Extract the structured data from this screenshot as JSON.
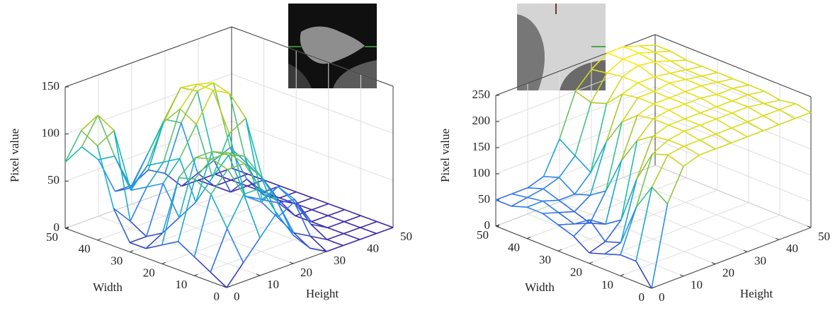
{
  "chart_data": [
    {
      "type": "surface",
      "zlabel": "Pixel value",
      "xlabel": "Width",
      "ylabel": "Height",
      "colormap": "parula",
      "x": [
        0,
        5,
        10,
        15,
        20,
        25,
        30,
        35,
        40,
        45,
        50
      ],
      "y": [
        0,
        5,
        10,
        15,
        20,
        25,
        30,
        35,
        40,
        45,
        50
      ],
      "z": [
        [
          0,
          20,
          40,
          60,
          30,
          10,
          0,
          0,
          0,
          0,
          0
        ],
        [
          10,
          50,
          80,
          80,
          60,
          20,
          10,
          0,
          0,
          0,
          0
        ],
        [
          20,
          80,
          100,
          100,
          80,
          30,
          40,
          10,
          0,
          0,
          0
        ],
        [
          30,
          90,
          105,
          105,
          95,
          40,
          50,
          30,
          0,
          0,
          0
        ],
        [
          20,
          85,
          100,
          100,
          90,
          40,
          30,
          20,
          0,
          0,
          0
        ],
        [
          10,
          20,
          30,
          40,
          60,
          100,
          110,
          40,
          10,
          0,
          0
        ],
        [
          10,
          10,
          60,
          80,
          110,
          140,
          130,
          50,
          10,
          0,
          0
        ],
        [
          40,
          20,
          50,
          70,
          120,
          140,
          135,
          60,
          20,
          0,
          0
        ],
        [
          100,
          110,
          40,
          60,
          100,
          130,
          120,
          40,
          0,
          0,
          0
        ],
        [
          110,
          120,
          70,
          30,
          60,
          90,
          80,
          20,
          0,
          0,
          0
        ],
        [
          70,
          80,
          60,
          20,
          20,
          30,
          20,
          0,
          0,
          0,
          0
        ]
      ],
      "xlim": [
        0,
        50
      ],
      "ylim": [
        0,
        50
      ],
      "zlim": [
        0,
        150
      ],
      "xticks": [
        0,
        10,
        20,
        30,
        40,
        50
      ],
      "yticks": [
        0,
        10,
        20,
        30,
        40,
        50
      ],
      "zticks": [
        0,
        50,
        100,
        150
      ],
      "grid": true
    },
    {
      "type": "surface",
      "zlabel": "Pixel value",
      "xlabel": "Width",
      "ylabel": "Height",
      "colormap": "parula",
      "x": [
        0,
        5,
        10,
        15,
        20,
        25,
        30,
        35,
        40,
        45,
        50
      ],
      "y": [
        0,
        5,
        10,
        15,
        20,
        25,
        30,
        35,
        40,
        45,
        50
      ],
      "z": [
        [
          0,
          150,
          210,
          220,
          220,
          220,
          220,
          220,
          220,
          220,
          220
        ],
        [
          40,
          170,
          220,
          225,
          225,
          225,
          225,
          225,
          225,
          225,
          225
        ],
        [
          40,
          120,
          210,
          225,
          230,
          230,
          230,
          230,
          230,
          225,
          220
        ],
        [
          30,
          40,
          150,
          220,
          230,
          230,
          230,
          230,
          230,
          230,
          225
        ],
        [
          20,
          30,
          60,
          200,
          230,
          235,
          235,
          235,
          230,
          230,
          225
        ],
        [
          40,
          60,
          40,
          150,
          225,
          235,
          235,
          235,
          235,
          230,
          225
        ],
        [
          50,
          40,
          30,
          80,
          200,
          235,
          235,
          240,
          235,
          230,
          225
        ],
        [
          60,
          50,
          40,
          60,
          150,
          230,
          240,
          240,
          235,
          230,
          225
        ],
        [
          60,
          60,
          50,
          50,
          80,
          200,
          240,
          250,
          245,
          235,
          225
        ],
        [
          50,
          55,
          60,
          70,
          100,
          190,
          235,
          250,
          250,
          240,
          230
        ],
        [
          50,
          50,
          50,
          60,
          120,
          200,
          230,
          250,
          250,
          240,
          230
        ]
      ],
      "xlim": [
        0,
        50
      ],
      "ylim": [
        0,
        50
      ],
      "zlim": [
        0,
        250
      ],
      "xticks": [
        0,
        10,
        20,
        30,
        40,
        50
      ],
      "yticks": [
        0,
        10,
        20,
        30,
        40,
        50
      ],
      "zticks": [
        0,
        50,
        100,
        150,
        200,
        250
      ],
      "grid": true
    }
  ]
}
